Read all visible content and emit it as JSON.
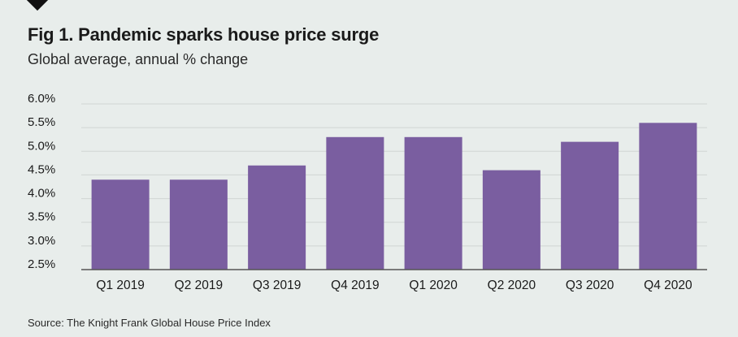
{
  "colors": {
    "background": "#e8edeb",
    "bar": "#7a5ea0",
    "gridline": "#d0d5d3",
    "axis": "#555555",
    "text": "#1a1a1a"
  },
  "chart_data": {
    "type": "bar",
    "title": "Fig 1. Pandemic sparks house price surge",
    "subtitle": "Global average, annual % change",
    "xlabel": "",
    "ylabel": "",
    "categories": [
      "Q1 2019",
      "Q2 2019",
      "Q3 2019",
      "Q4 2019",
      "Q1 2020",
      "Q2 2020",
      "Q3 2020",
      "Q4 2020"
    ],
    "values": [
      4.4,
      4.4,
      4.7,
      5.3,
      5.3,
      4.6,
      5.2,
      5.6
    ],
    "ylim": [
      2.5,
      6.0
    ],
    "yticks": [
      2.5,
      3.0,
      3.5,
      4.0,
      4.5,
      5.0,
      5.5,
      6.0
    ],
    "ytick_labels": [
      "2.5%",
      "3.0%",
      "3.5%",
      "4.0%",
      "4.5%",
      "5.0%",
      "5.5%",
      "6.0%"
    ],
    "grid": true,
    "source": "Source: The Knight Frank Global House Price Index"
  }
}
